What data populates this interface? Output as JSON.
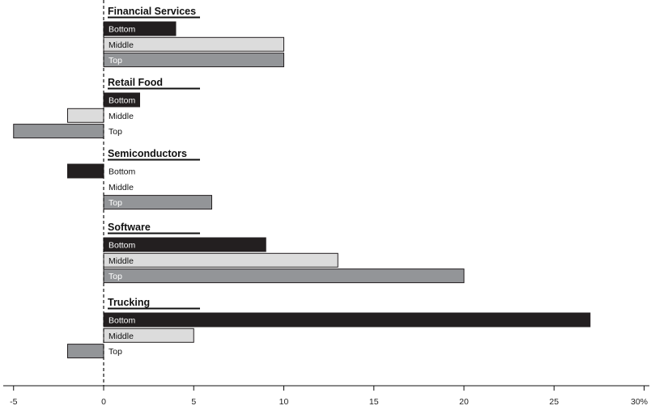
{
  "chart_data": {
    "type": "bar",
    "orientation": "horizontal",
    "title": "",
    "xlabel": "",
    "ylabel": "",
    "xlim": [
      -5,
      30
    ],
    "x_ticks": [
      "-5",
      "0",
      "5",
      "10",
      "15",
      "20",
      "25",
      "30%"
    ],
    "grid": false,
    "legend": "none",
    "colors": {
      "Bottom": "#231f20",
      "Middle": "#dcdcdc",
      "Top": "#939598"
    },
    "groups": [
      {
        "name": "Financial Services",
        "bars": [
          {
            "label": "Bottom",
            "value": 4
          },
          {
            "label": "Middle",
            "value": 10
          },
          {
            "label": "Top",
            "value": 10
          }
        ]
      },
      {
        "name": "Retail Food",
        "bars": [
          {
            "label": "Bottom",
            "value": 2
          },
          {
            "label": "Middle",
            "value": -2
          },
          {
            "label": "Top",
            "value": -5
          }
        ]
      },
      {
        "name": "Semiconductors",
        "bars": [
          {
            "label": "Bottom",
            "value": -2
          },
          {
            "label": "Middle",
            "value": 0
          },
          {
            "label": "Top",
            "value": 6
          }
        ]
      },
      {
        "name": "Software",
        "bars": [
          {
            "label": "Bottom",
            "value": 9
          },
          {
            "label": "Middle",
            "value": 13
          },
          {
            "label": "Top",
            "value": 20
          }
        ]
      },
      {
        "name": "Trucking",
        "bars": [
          {
            "label": "Bottom",
            "value": 27
          },
          {
            "label": "Middle",
            "value": 5
          },
          {
            "label": "Top",
            "value": -2
          }
        ]
      }
    ]
  }
}
